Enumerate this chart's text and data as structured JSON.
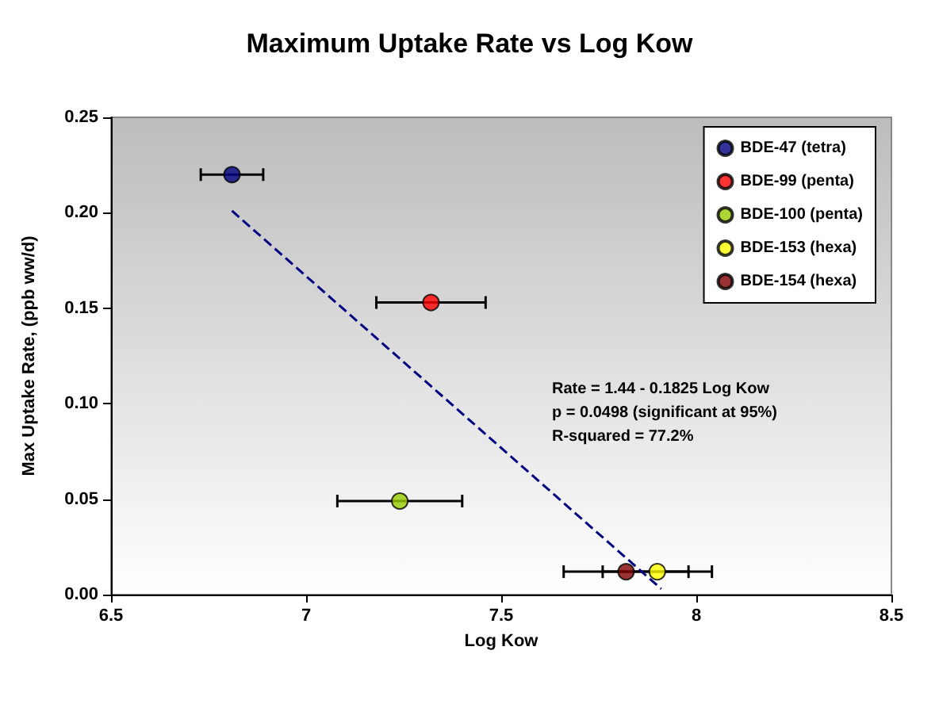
{
  "chart_data": {
    "type": "scatter",
    "title": "Maximum Uptake Rate vs Log Kow",
    "xlabel": "Log Kow",
    "ylabel": "Max Uptake Rate, (ppb ww/d)",
    "xlim": [
      6.5,
      8.5
    ],
    "xticks": [
      6.5,
      7,
      7.5,
      8,
      8.5
    ],
    "ylim": [
      0,
      0.25
    ],
    "yticks": [
      {
        "value": 0,
        "label": "0.00"
      },
      {
        "value": 0.05,
        "label": "0.05"
      },
      {
        "value": 0.1,
        "label": "0.10"
      },
      {
        "value": 0.15,
        "label": "0.15"
      },
      {
        "value": 0.2,
        "label": "0.20"
      },
      {
        "value": 0.25,
        "label": "0.25"
      }
    ],
    "grid": false,
    "legend": "top right",
    "marker": "circle",
    "series": [
      {
        "name": "BDE-47 (tetra)",
        "color": "#000080",
        "x": [
          6.81
        ],
        "values": [
          0.22
        ],
        "xerrors": [
          0.08
        ]
      },
      {
        "name": "BDE-99 (penta)",
        "color": "#ff0000",
        "x": [
          7.32
        ],
        "values": [
          0.153
        ],
        "xerrors": [
          0.14
        ]
      },
      {
        "name": "BDE-100 (penta)",
        "color": "#99cc00",
        "x": [
          7.24
        ],
        "values": [
          0.049
        ],
        "xerrors": [
          0.16
        ]
      },
      {
        "name": "BDE-153 (hexa)",
        "color": "#ffff00",
        "x": [
          7.9
        ],
        "values": [
          0.012
        ],
        "xerrors": [
          0.14
        ]
      },
      {
        "name": "BDE-154 (hexa)",
        "color": "#800000",
        "x": [
          7.82
        ],
        "values": [
          0.012
        ],
        "xerrors": [
          0.16
        ]
      },
      {
        "type": "line",
        "color": "#000080",
        "line_style": "dashed",
        "marker": "none",
        "x": [
          6.81,
          7.91
        ],
        "values": [
          0.201,
          0.003
        ]
      }
    ],
    "annotations": [
      "Rate = 1.44 - 0.1825 Log Kow",
      "p = 0.0498 (significant at 95%)",
      "R-squared = 77.2%"
    ]
  }
}
